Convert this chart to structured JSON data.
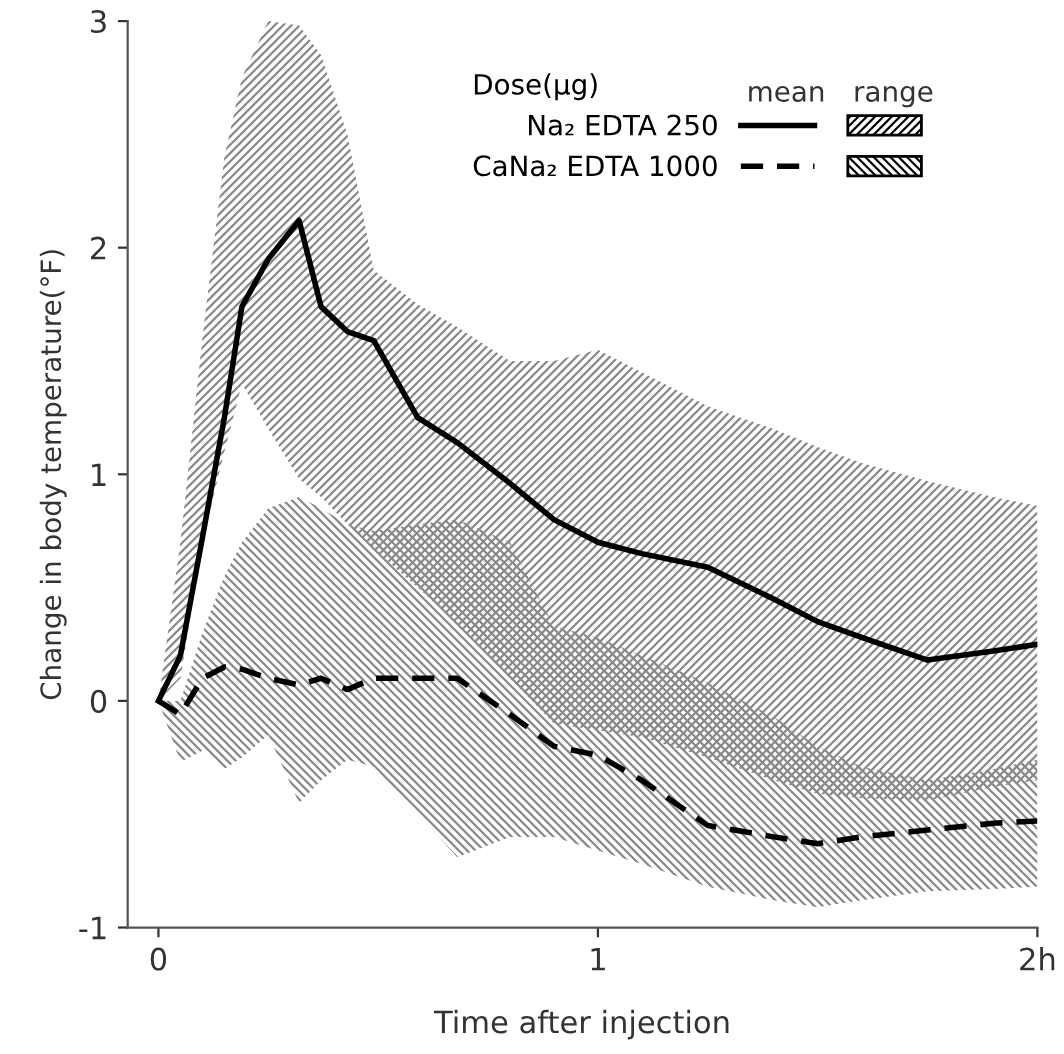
{
  "chart_data": {
    "type": "line",
    "xlabel": "Time after injection",
    "ylabel": "Change in body temperature(°F)",
    "legend_title": "Dose(μg)",
    "annotations": [
      "mean",
      "range"
    ],
    "xlim": [
      -0.07,
      2.0
    ],
    "ylim": [
      -1,
      3
    ],
    "xticks": [
      0,
      1,
      {
        "value": 2,
        "label": "2h"
      }
    ],
    "yticks": [
      -1,
      0,
      1,
      2,
      3
    ],
    "grid": false,
    "legend": "top right",
    "series": [
      {
        "name": "Na₂ EDTA 250",
        "color": "#000000",
        "line_style": "solid",
        "x": [
          0,
          0.05,
          0.1,
          0.15,
          0.19,
          0.25,
          0.32,
          0.37,
          0.43,
          0.49,
          0.59,
          0.68,
          0.8,
          0.9,
          1.0,
          1.1,
          1.25,
          1.4,
          1.5,
          1.6,
          1.75,
          1.9,
          2.0
        ],
        "values": [
          0,
          0.2,
          0.72,
          1.25,
          1.74,
          1.95,
          2.12,
          1.74,
          1.63,
          1.59,
          1.25,
          1.14,
          0.96,
          0.8,
          0.7,
          0.65,
          0.59,
          0.45,
          0.35,
          0.28,
          0.18,
          0.22,
          0.25
        ],
        "upper": [
          0,
          0.7,
          1.6,
          2.4,
          2.75,
          3.0,
          2.98,
          2.85,
          2.5,
          1.9,
          1.75,
          1.65,
          1.5,
          1.5,
          1.55,
          1.45,
          1.3,
          1.2,
          1.12,
          1.05,
          0.97,
          0.9,
          0.86
        ],
        "lower": [
          0,
          0.1,
          0.7,
          1.1,
          1.4,
          1.2,
          0.98,
          0.9,
          0.78,
          0.67,
          0.5,
          0.34,
          0.1,
          -0.1,
          -0.13,
          -0.16,
          -0.25,
          -0.35,
          -0.41,
          -0.43,
          -0.44,
          -0.38,
          -0.35
        ]
      },
      {
        "name": "CaNa₂ EDTA 1000",
        "color": "#000000",
        "line_style": "dashed",
        "x": [
          0,
          0.05,
          0.1,
          0.15,
          0.19,
          0.25,
          0.32,
          0.37,
          0.43,
          0.49,
          0.59,
          0.68,
          0.8,
          0.9,
          1.0,
          1.1,
          1.25,
          1.4,
          1.5,
          1.6,
          1.75,
          1.9,
          2.0
        ],
        "values": [
          0,
          -0.06,
          0.1,
          0.15,
          0.14,
          0.1,
          0.07,
          0.1,
          0.05,
          0.1,
          0.1,
          0.1,
          -0.06,
          -0.2,
          -0.24,
          -0.35,
          -0.55,
          -0.6,
          -0.63,
          -0.6,
          -0.57,
          -0.54,
          -0.53
        ],
        "upper": [
          0,
          0.0,
          0.3,
          0.55,
          0.7,
          0.85,
          0.9,
          0.85,
          0.78,
          0.75,
          0.78,
          0.8,
          0.7,
          0.33,
          0.28,
          0.2,
          0.08,
          -0.07,
          -0.2,
          -0.29,
          -0.35,
          -0.3,
          -0.26
        ],
        "lower": [
          0,
          -0.27,
          -0.22,
          -0.3,
          -0.25,
          -0.15,
          -0.45,
          -0.35,
          -0.26,
          -0.29,
          -0.5,
          -0.69,
          -0.6,
          -0.6,
          -0.66,
          -0.72,
          -0.82,
          -0.88,
          -0.91,
          -0.88,
          -0.84,
          -0.83,
          -0.82
        ]
      }
    ]
  }
}
